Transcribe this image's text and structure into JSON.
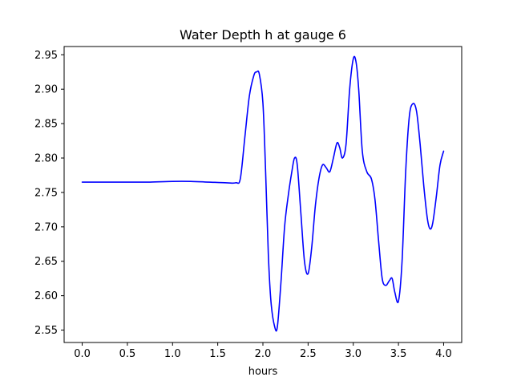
{
  "chart_data": {
    "type": "line",
    "title": "Water Depth h at gauge 6",
    "xlabel": "hours",
    "ylabel": "",
    "xlim": [
      -0.2,
      4.2
    ],
    "ylim": [
      2.532,
      2.962
    ],
    "x_ticks": [
      0.0,
      0.5,
      1.0,
      1.5,
      2.0,
      2.5,
      3.0,
      3.5,
      4.0
    ],
    "x_tick_labels": [
      "0.0",
      "0.5",
      "1.0",
      "1.5",
      "2.0",
      "2.5",
      "3.0",
      "3.5",
      "4.0"
    ],
    "y_ticks": [
      2.55,
      2.6,
      2.65,
      2.7,
      2.75,
      2.8,
      2.85,
      2.9,
      2.95
    ],
    "y_tick_labels": [
      "2.55",
      "2.60",
      "2.65",
      "2.70",
      "2.75",
      "2.80",
      "2.85",
      "2.90",
      "2.95"
    ],
    "grid": false,
    "series": [
      {
        "color": "#0000ff",
        "points": [
          [
            0.0,
            2.765
          ],
          [
            0.25,
            2.765
          ],
          [
            0.5,
            2.765
          ],
          [
            0.75,
            2.765
          ],
          [
            1.0,
            2.766
          ],
          [
            1.2,
            2.766
          ],
          [
            1.4,
            2.765
          ],
          [
            1.6,
            2.764
          ],
          [
            1.7,
            2.764
          ],
          [
            1.75,
            2.77
          ],
          [
            1.8,
            2.83
          ],
          [
            1.85,
            2.89
          ],
          [
            1.9,
            2.92
          ],
          [
            1.93,
            2.925
          ],
          [
            1.96,
            2.922
          ],
          [
            2.0,
            2.88
          ],
          [
            2.03,
            2.78
          ],
          [
            2.06,
            2.66
          ],
          [
            2.09,
            2.59
          ],
          [
            2.13,
            2.555
          ],
          [
            2.16,
            2.555
          ],
          [
            2.2,
            2.62
          ],
          [
            2.24,
            2.7
          ],
          [
            2.28,
            2.745
          ],
          [
            2.32,
            2.78
          ],
          [
            2.35,
            2.8
          ],
          [
            2.38,
            2.79
          ],
          [
            2.42,
            2.72
          ],
          [
            2.46,
            2.65
          ],
          [
            2.5,
            2.632
          ],
          [
            2.54,
            2.67
          ],
          [
            2.58,
            2.73
          ],
          [
            2.62,
            2.77
          ],
          [
            2.66,
            2.79
          ],
          [
            2.7,
            2.786
          ],
          [
            2.74,
            2.78
          ],
          [
            2.78,
            2.8
          ],
          [
            2.82,
            2.822
          ],
          [
            2.85,
            2.815
          ],
          [
            2.88,
            2.8
          ],
          [
            2.92,
            2.82
          ],
          [
            2.96,
            2.9
          ],
          [
            3.0,
            2.944
          ],
          [
            3.03,
            2.94
          ],
          [
            3.06,
            2.9
          ],
          [
            3.1,
            2.81
          ],
          [
            3.15,
            2.78
          ],
          [
            3.2,
            2.77
          ],
          [
            3.24,
            2.74
          ],
          [
            3.28,
            2.68
          ],
          [
            3.32,
            2.625
          ],
          [
            3.36,
            2.615
          ],
          [
            3.4,
            2.622
          ],
          [
            3.43,
            2.625
          ],
          [
            3.46,
            2.605
          ],
          [
            3.5,
            2.592
          ],
          [
            3.54,
            2.65
          ],
          [
            3.58,
            2.78
          ],
          [
            3.62,
            2.86
          ],
          [
            3.66,
            2.879
          ],
          [
            3.7,
            2.868
          ],
          [
            3.74,
            2.82
          ],
          [
            3.78,
            2.76
          ],
          [
            3.82,
            2.712
          ],
          [
            3.85,
            2.697
          ],
          [
            3.88,
            2.706
          ],
          [
            3.92,
            2.745
          ],
          [
            3.96,
            2.79
          ],
          [
            4.0,
            2.81
          ]
        ]
      }
    ]
  }
}
